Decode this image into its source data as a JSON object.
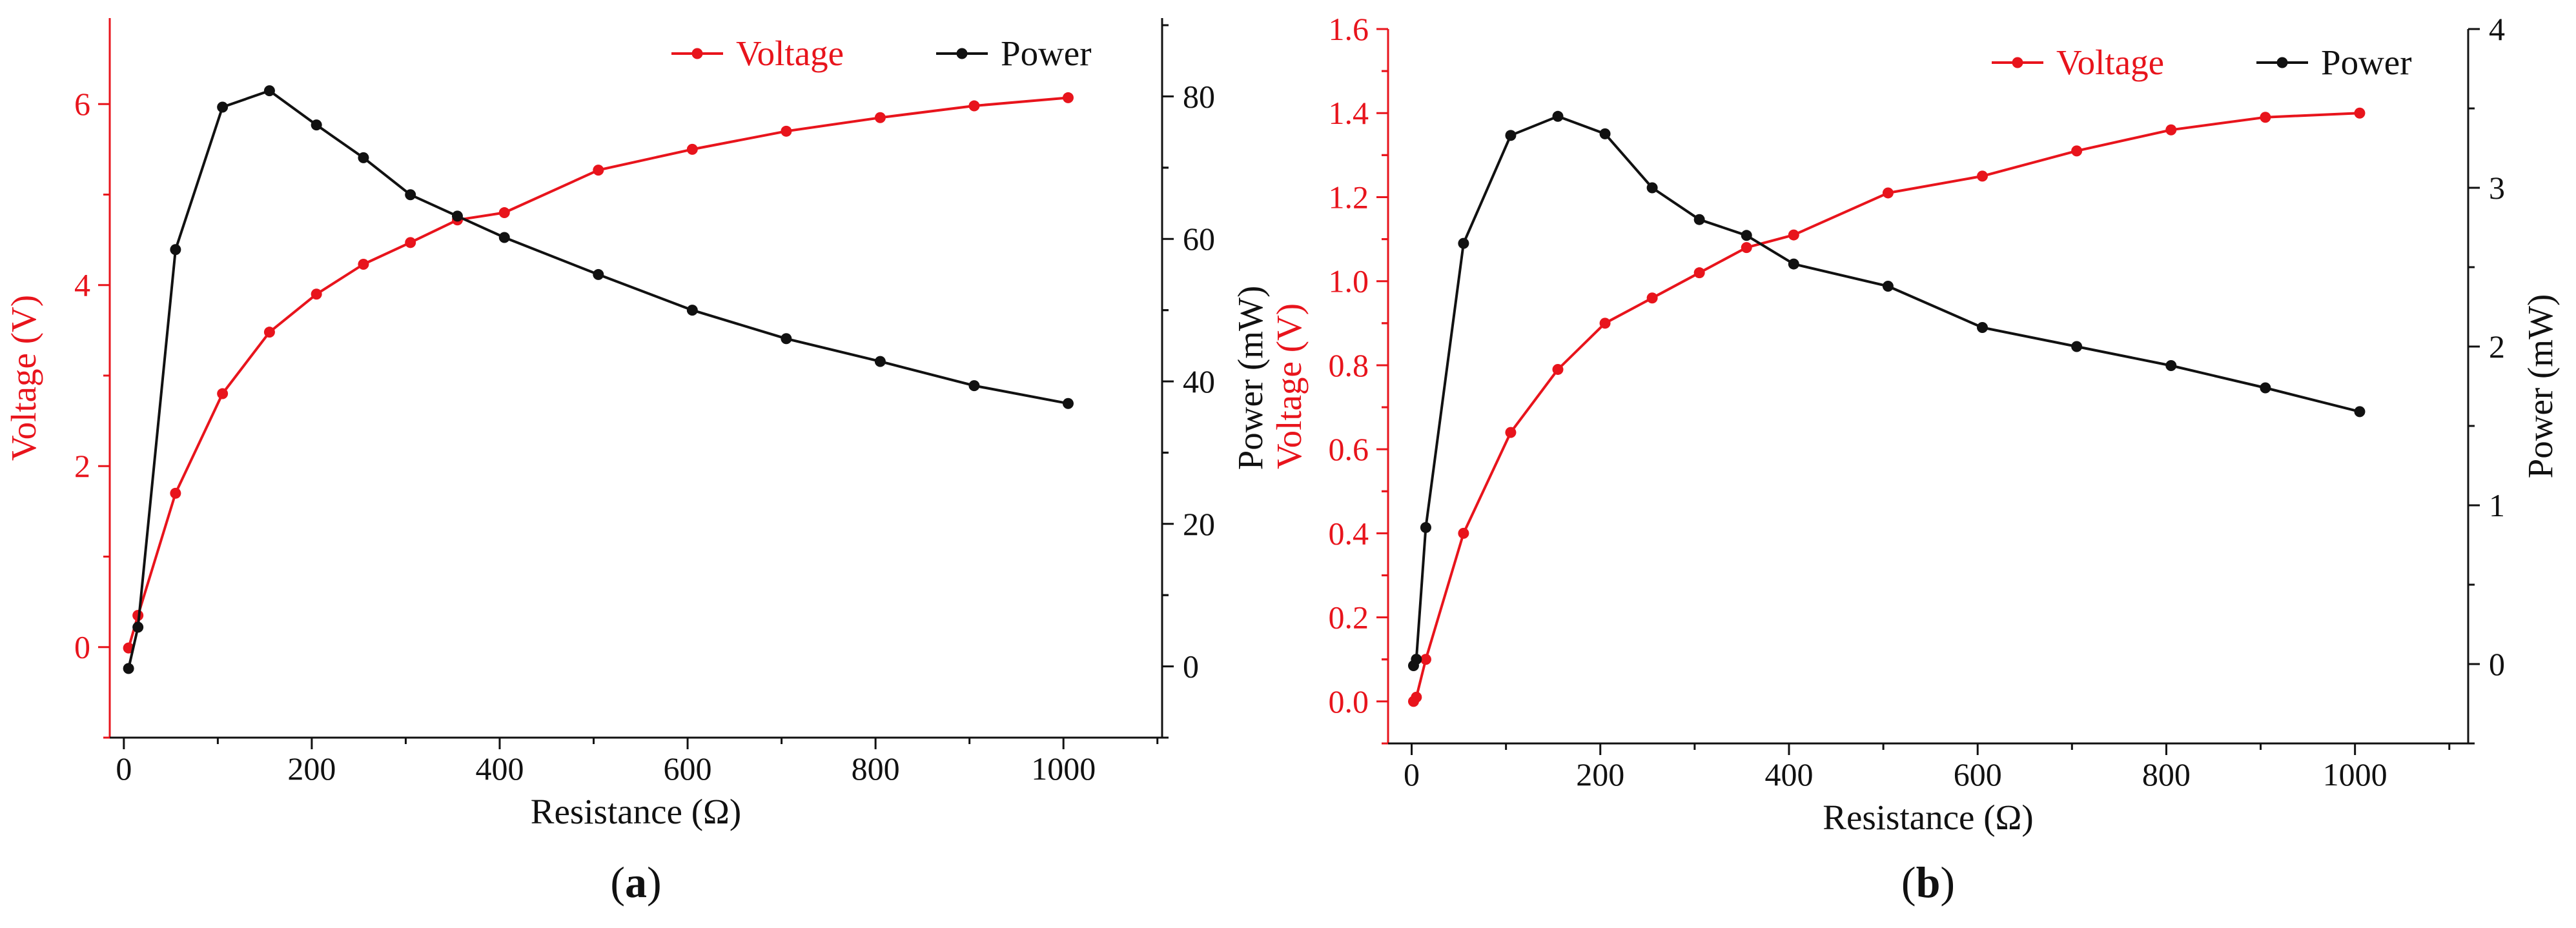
{
  "chart_data": [
    {
      "type": "line",
      "panel_label": "a",
      "xlabel": "Resistance (Ω)",
      "ylabel_left": "Voltage (V)",
      "ylabel_right": "Power (mW)",
      "xlim": [
        -15,
        1105
      ],
      "x_ticks": [
        0,
        200,
        400,
        600,
        800,
        1000
      ],
      "y_left_lim": [
        -1.0,
        6.95
      ],
      "y_left_ticks": [
        0,
        2,
        4,
        6
      ],
      "y_right_lim": [
        -10.0,
        91.0
      ],
      "y_right_ticks": [
        0,
        20,
        40,
        60,
        80
      ],
      "legend_position": "top-right",
      "series": [
        {
          "name": "Voltage",
          "axis": "left",
          "color": "#e8141c",
          "x": [
            5,
            15,
            55,
            105,
            155,
            205,
            255,
            305,
            355,
            405,
            505,
            605,
            705,
            805,
            905,
            1005
          ],
          "y": [
            -0.01,
            0.35,
            1.7,
            2.8,
            3.48,
            3.9,
            4.23,
            4.47,
            4.72,
            4.8,
            5.27,
            5.5,
            5.7,
            5.85,
            5.98,
            6.07
          ]
        },
        {
          "name": "Power",
          "axis": "right",
          "color": "#111111",
          "x": [
            5,
            15,
            55,
            105,
            155,
            205,
            255,
            305,
            355,
            405,
            505,
            605,
            705,
            805,
            905,
            1005
          ],
          "y": [
            -0.3,
            5.5,
            58.5,
            78.5,
            80.8,
            76.0,
            71.4,
            66.2,
            63.2,
            60.2,
            55.0,
            50.0,
            46.0,
            42.8,
            39.4,
            36.9
          ]
        }
      ]
    },
    {
      "type": "line",
      "panel_label": "b",
      "xlabel": "Resistance (Ω)",
      "ylabel_left": "Voltage (V)",
      "ylabel_right": "Power (mW)",
      "xlim": [
        -25,
        1120
      ],
      "x_ticks": [
        0,
        200,
        400,
        600,
        800,
        1000
      ],
      "y_left_lim": [
        -0.1,
        1.6
      ],
      "y_left_ticks": [
        0.0,
        0.2,
        0.4,
        0.6,
        0.8,
        1.0,
        1.2,
        1.4,
        1.6
      ],
      "y_right_lim": [
        -0.5,
        4.0
      ],
      "y_right_ticks": [
        0,
        1,
        2,
        3,
        4
      ],
      "legend_position": "top-right",
      "series": [
        {
          "name": "Voltage",
          "axis": "left",
          "color": "#e8141c",
          "x": [
            2,
            5,
            15,
            55,
            105,
            155,
            205,
            255,
            305,
            355,
            405,
            505,
            605,
            705,
            805,
            905,
            1005
          ],
          "y": [
            0.0,
            0.01,
            0.1,
            0.4,
            0.64,
            0.79,
            0.9,
            0.96,
            1.02,
            1.08,
            1.11,
            1.21,
            1.25,
            1.31,
            1.36,
            1.39,
            1.4
          ]
        },
        {
          "name": "Power",
          "axis": "right",
          "color": "#111111",
          "x": [
            2,
            5,
            15,
            55,
            105,
            155,
            205,
            255,
            305,
            355,
            405,
            505,
            605,
            705,
            805,
            905,
            1005
          ],
          "y": [
            -0.01,
            0.03,
            0.86,
            2.65,
            3.33,
            3.45,
            3.34,
            3.0,
            2.8,
            2.7,
            2.52,
            2.38,
            2.12,
            2.0,
            1.88,
            1.74,
            1.59
          ]
        }
      ]
    }
  ]
}
